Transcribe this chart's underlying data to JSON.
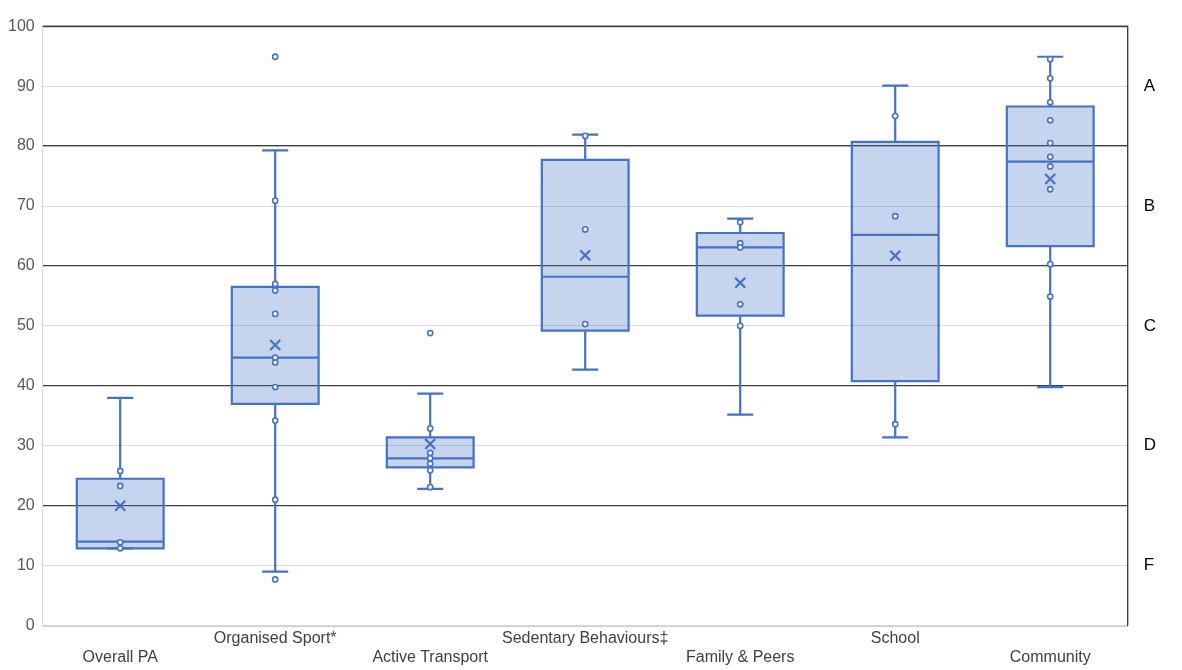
{
  "chart_data": {
    "type": "box",
    "categories": [
      "Overall PA",
      "Organised Sport*",
      "Active Transport",
      "Sedentary Behaviours‡",
      "Family & Peers",
      "School",
      "Community"
    ],
    "series": [
      {
        "color": "#4472c4",
        "boxes": [
          {
            "low": 12.9,
            "q1": 12.9,
            "median": 14,
            "q3": 24.5,
            "high": 38,
            "mean": 20
          },
          {
            "low": 9,
            "q1": 37,
            "median": 44.7,
            "q3": 56.5,
            "high": 79.3,
            "mean": 46.8,
            "outliers": [
              94.9,
              7.7
            ]
          },
          {
            "low": 22.8,
            "q1": 26.4,
            "median": 27.9,
            "q3": 31.4,
            "high": 38.7,
            "mean": 30.3,
            "outliers": [
              48.8
            ]
          },
          {
            "low": 42.7,
            "q1": 49.2,
            "median": 58.2,
            "q3": 77.7,
            "high": 81.9,
            "mean": 61.8
          },
          {
            "low": 35.2,
            "q1": 51.7,
            "median": 63.1,
            "q3": 65.5,
            "high": 67.9,
            "mean": 57.2
          },
          {
            "low": 31.4,
            "q1": 40.8,
            "median": 65.2,
            "q3": 80.7,
            "high": 90.1,
            "mean": 61.7
          },
          {
            "low": 39.8,
            "q1": 63.3,
            "median": 77.4,
            "q3": 86.6,
            "high": 94.9,
            "mean": 74.5
          }
        ]
      },
      {
        "type": "scatter",
        "color": "#4472c4",
        "marker": "circle",
        "x": [
          "Overall PA",
          "Overall PA",
          "Overall PA",
          "Overall PA",
          "Organised Sport*",
          "Organised Sport*",
          "Organised Sport*",
          "Organised Sport*",
          "Organised Sport*",
          "Organised Sport*",
          "Organised Sport*",
          "Organised Sport*",
          "Organised Sport*",
          "Active Transport",
          "Active Transport",
          "Active Transport",
          "Active Transport",
          "Active Transport",
          "Active Transport",
          "Sedentary Behaviours‡",
          "Sedentary Behaviours‡",
          "Sedentary Behaviours‡",
          "Family & Peers",
          "Family & Peers",
          "Family & Peers",
          "Family & Peers",
          "Family & Peers",
          "School",
          "School",
          "School",
          "Community",
          "Community",
          "Community",
          "Community",
          "Community",
          "Community",
          "Community",
          "Community",
          "Community",
          "Community"
        ],
        "values": [
          25.8,
          23.3,
          13.9,
          12.9,
          70.9,
          57,
          55.9,
          52,
          44.7,
          43.9,
          39.8,
          34.2,
          21,
          32.9,
          28.8,
          27.9,
          27,
          25.9,
          23.1,
          81.7,
          66.1,
          50.3,
          67.3,
          63.8,
          63.1,
          53.6,
          50,
          85,
          68.3,
          33.6,
          94.5,
          91.3,
          87.3,
          84.3,
          80.5,
          78.2,
          76.6,
          72.8,
          60.3,
          54.9
        ]
      }
    ],
    "ylim": [
      0,
      100
    ],
    "yticks": [
      0,
      10,
      20,
      30,
      40,
      50,
      60,
      70,
      80,
      90,
      100
    ],
    "y2_categories": [
      "A",
      "B",
      "C",
      "D",
      "F"
    ],
    "grid": "y",
    "legend": false
  }
}
